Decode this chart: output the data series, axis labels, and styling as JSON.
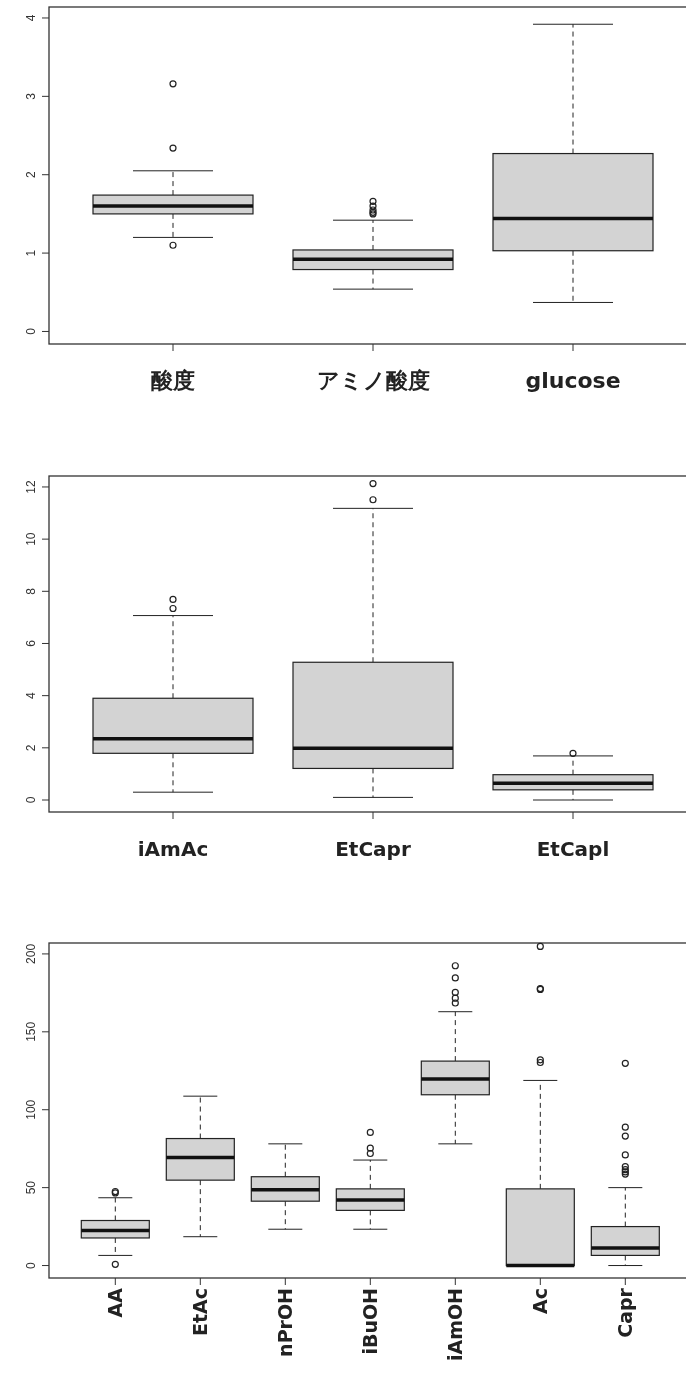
{
  "chart_data": [
    {
      "type": "box",
      "categories": [
        "酸度",
        "アミノ酸度",
        "glucose"
      ],
      "color": "#d3d3d3",
      "ylim": [
        -0.16,
        4.14
      ],
      "yticks": [
        0,
        1,
        2,
        3,
        4
      ],
      "grid": false,
      "marker": "circle",
      "boxes": [
        {
          "low": 1.2,
          "q1": 1.5,
          "median": 1.6,
          "q3": 1.74,
          "high": 2.05,
          "outliers": [
            3.16,
            2.34,
            1.1
          ]
        },
        {
          "low": 0.54,
          "q1": 0.79,
          "median": 0.92,
          "q3": 1.04,
          "high": 1.42,
          "outliers": [
            1.5,
            1.52,
            1.55,
            1.6,
            1.66
          ]
        },
        {
          "low": 0.37,
          "q1": 1.03,
          "median": 1.44,
          "q3": 2.27,
          "high": 3.92
        }
      ]
    },
    {
      "type": "box",
      "categories": [
        "iAmAc",
        "EtCapr",
        "EtCapl"
      ],
      "color": "#d3d3d3",
      "ylim": [
        -0.46,
        12.42
      ],
      "yticks": [
        0,
        2,
        4,
        6,
        8,
        10,
        12
      ],
      "grid": false,
      "marker": "circle",
      "boxes": [
        {
          "low": 0.3,
          "q1": 1.79,
          "median": 2.35,
          "q3": 3.9,
          "high": 7.07,
          "outliers": [
            7.34,
            7.69
          ]
        },
        {
          "low": 0.1,
          "q1": 1.21,
          "median": 1.98,
          "q3": 5.28,
          "high": 11.18,
          "outliers": [
            11.51,
            12.13
          ]
        },
        {
          "low": 0,
          "q1": 0.39,
          "median": 0.64,
          "q3": 0.97,
          "high": 1.69,
          "outliers": [
            1.79
          ]
        }
      ]
    },
    {
      "type": "box",
      "categories": [
        "AA",
        "EtAc",
        "nPrOH",
        "iBuOH",
        "iAmOH",
        "Ac",
        "Capr"
      ],
      "color": "#d3d3d3",
      "ylim": [
        -8,
        207
      ],
      "yticks": [
        0,
        50,
        100,
        150,
        200
      ],
      "grid": false,
      "marker": "circle",
      "boxes": [
        {
          "low": 6.5,
          "q1": 17.7,
          "median": 22.5,
          "q3": 28.9,
          "high": 43.5,
          "outliers": [
            46.6,
            47.5,
            0.8
          ]
        },
        {
          "low": 18.5,
          "q1": 54.8,
          "median": 69.4,
          "q3": 81.5,
          "high": 108.7
        },
        {
          "low": 23.3,
          "q1": 41.3,
          "median": 48.6,
          "q3": 57,
          "high": 78.1
        },
        {
          "low": 23.3,
          "q1": 35.4,
          "median": 42.1,
          "q3": 49.2,
          "high": 67.7,
          "outliers": [
            71.9,
            75.3,
            85.4
          ]
        },
        {
          "low": 78.1,
          "q1": 109.6,
          "median": 119.7,
          "q3": 131.2,
          "high": 162.9,
          "outliers": [
            168.5,
            171.6,
            175.3,
            184.6,
            192.4
          ]
        },
        {
          "low": 0,
          "q1": 0,
          "median": 0,
          "q3": 49.2,
          "high": 118.8,
          "outliers": [
            130.3,
            132,
            177.2,
            177.8,
            204.8
          ]
        },
        {
          "low": 0,
          "q1": 6.5,
          "median": 11.2,
          "q3": 25,
          "high": 50,
          "outliers": [
            58.7,
            60.1,
            61.5,
            63.5,
            71,
            83.1,
            88.8,
            129.8
          ]
        }
      ]
    }
  ]
}
